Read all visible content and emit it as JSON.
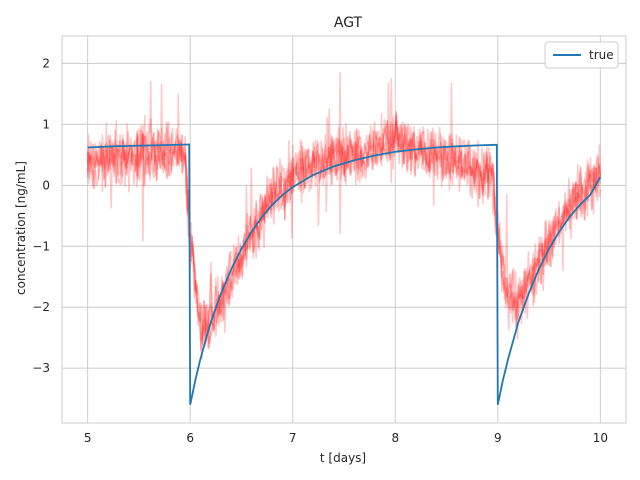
{
  "chart_data": {
    "type": "line",
    "title": "AGT",
    "xlabel": "t [days]",
    "ylabel": "concentration [ng/mL]",
    "xlim": [
      4.75,
      10.25
    ],
    "ylim": [
      -3.9,
      2.45
    ],
    "xticks": [
      5,
      6,
      7,
      8,
      9,
      10
    ],
    "yticks": [
      -3,
      -2,
      -1,
      0,
      1,
      2
    ],
    "grid": true,
    "legend": {
      "placement": "top-right",
      "entries": [
        "true"
      ]
    },
    "colors": {
      "true": "#1f77b4",
      "noisy": "#ff0000",
      "grid": "#cccccc",
      "spine": "#cccccc"
    },
    "series": [
      {
        "name": "true",
        "x": [
          5.0,
          5.25,
          5.5,
          5.75,
          5.98,
          5.99,
          6.0,
          6.05,
          6.1,
          6.2,
          6.3,
          6.4,
          6.5,
          6.6,
          6.7,
          6.8,
          6.9,
          7.0,
          7.2,
          7.4,
          7.6,
          7.8,
          8.0,
          8.2,
          8.4,
          8.6,
          8.8,
          8.98,
          8.99,
          9.0,
          9.05,
          9.1,
          9.2,
          9.3,
          9.4,
          9.5,
          9.6,
          9.7,
          9.8,
          9.9,
          10.0
        ],
        "y": [
          0.62,
          0.64,
          0.65,
          0.66,
          0.67,
          0.67,
          -3.6,
          -3.2,
          -2.85,
          -2.25,
          -1.78,
          -1.38,
          -1.04,
          -0.76,
          -0.52,
          -0.32,
          -0.16,
          -0.03,
          0.17,
          0.31,
          0.41,
          0.49,
          0.55,
          0.59,
          0.62,
          0.64,
          0.655,
          0.665,
          0.665,
          -3.6,
          -3.2,
          -2.85,
          -2.25,
          -1.78,
          -1.38,
          -1.04,
          -0.76,
          -0.52,
          -0.32,
          -0.16,
          0.14
        ]
      },
      {
        "x": [
          5.0,
          5.5,
          5.95,
          6.0,
          6.1,
          6.2,
          6.4,
          6.6,
          6.8,
          7.0,
          7.4,
          7.8,
          8.0,
          8.2,
          8.6,
          8.95,
          9.0,
          9.1,
          9.2,
          9.4,
          9.6,
          9.8,
          10.0
        ],
        "y": [
          0.35,
          0.55,
          0.55,
          -0.9,
          -2.3,
          -2.3,
          -1.5,
          -0.8,
          -0.2,
          0.15,
          0.45,
          0.6,
          0.75,
          0.55,
          0.4,
          0.15,
          -0.9,
          -1.8,
          -1.9,
          -1.3,
          -0.6,
          -0.1,
          0.15
        ]
      }
    ]
  }
}
